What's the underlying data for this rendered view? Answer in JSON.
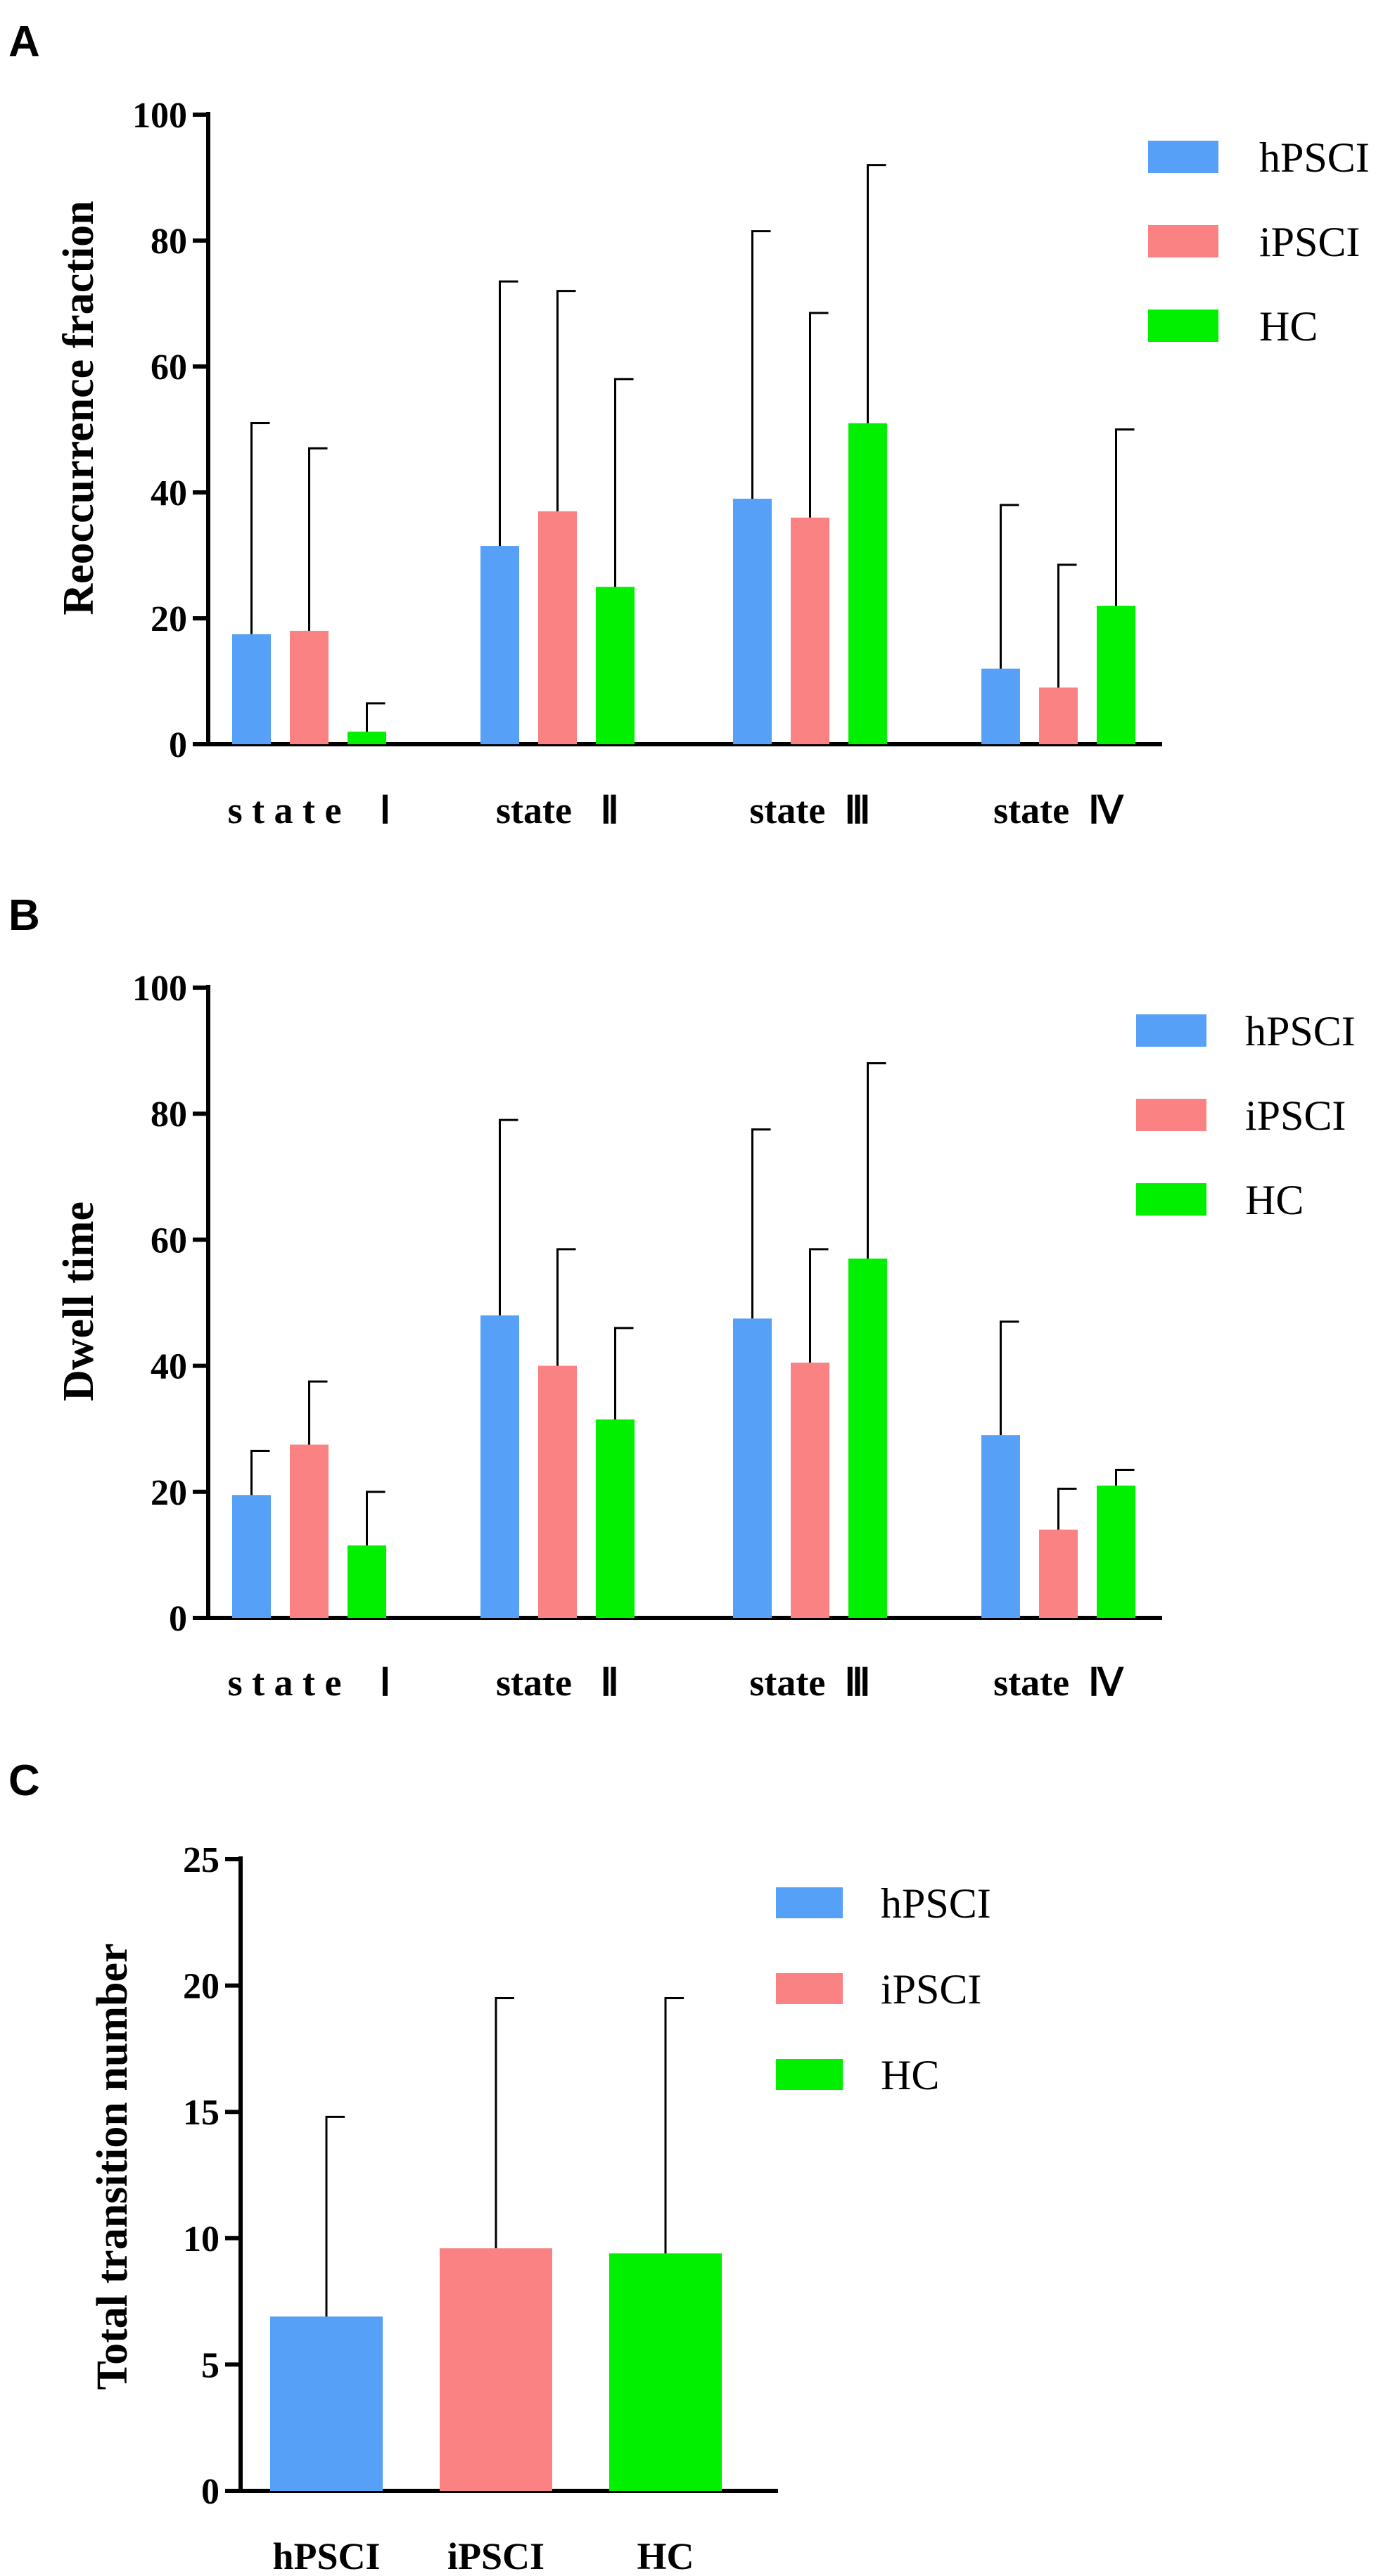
{
  "colors": {
    "hPSCI": "#57a0f8",
    "iPSCI": "#fa8282",
    "HC": "#00f000",
    "axis": "#000000"
  },
  "chart_data": [
    {
      "panel": "A",
      "type": "bar",
      "ylabel": "Reoccurrence fraction",
      "ylim": [
        0,
        100
      ],
      "yticks": [
        "0",
        "20",
        "40",
        "60",
        "80",
        "100"
      ],
      "categories": [
        "s t a t e    Ⅰ",
        "state   Ⅱ",
        "state  Ⅲ",
        "state  Ⅳ"
      ],
      "legend": [
        "hPSCI",
        "iPSCI",
        "HC"
      ],
      "series": [
        {
          "name": "hPSCI",
          "values": [
            17.5,
            31.5,
            39,
            12
          ],
          "errors": [
            33.5,
            42,
            42.5,
            26
          ]
        },
        {
          "name": "iPSCI",
          "values": [
            18,
            37,
            36,
            9
          ],
          "errors": [
            29,
            35,
            32.5,
            19.5
          ]
        },
        {
          "name": "HC",
          "values": [
            2,
            25,
            51,
            22
          ],
          "errors": [
            4.5,
            33,
            41,
            28
          ]
        }
      ]
    },
    {
      "panel": "B",
      "type": "bar",
      "ylabel": "Dwell time",
      "ylim": [
        0,
        100
      ],
      "yticks": [
        "0",
        "20",
        "40",
        "60",
        "80",
        "100"
      ],
      "categories": [
        "s t a t e    Ⅰ",
        "state   Ⅱ",
        "state  Ⅲ",
        "state  Ⅳ"
      ],
      "legend": [
        "hPSCI",
        "iPSCI",
        "HC"
      ],
      "series": [
        {
          "name": "hPSCI",
          "values": [
            19.5,
            48,
            47.5,
            29
          ],
          "errors": [
            7,
            31,
            30,
            18
          ]
        },
        {
          "name": "iPSCI",
          "values": [
            27.5,
            40,
            40.5,
            14
          ],
          "errors": [
            10,
            18.5,
            18,
            6.5
          ]
        },
        {
          "name": "HC",
          "values": [
            11.5,
            31.5,
            57,
            21
          ],
          "errors": [
            8.5,
            14.5,
            31,
            2.5
          ]
        }
      ]
    },
    {
      "panel": "C",
      "type": "bar",
      "ylabel": "Total transition number",
      "ylim": [
        0,
        25
      ],
      "yticks": [
        "0",
        "5",
        "10",
        "15",
        "20",
        "25"
      ],
      "categories": [
        "hPSCI",
        "iPSCI",
        "HC"
      ],
      "legend": [
        "hPSCI",
        "iPSCI",
        "HC"
      ],
      "values": [
        6.9,
        9.6,
        9.4
      ],
      "errors": [
        7.9,
        9.9,
        10.1
      ]
    }
  ]
}
